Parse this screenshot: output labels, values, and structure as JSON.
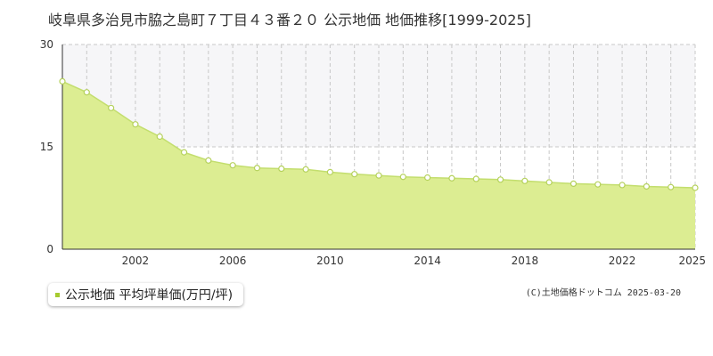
{
  "chart_data": {
    "type": "area",
    "title": "岐阜県多治見市脇之島町７丁目４３番２０ 公示地価 地価推移[1999-2025]",
    "x": [
      1999,
      2000,
      2001,
      2002,
      2003,
      2004,
      2005,
      2006,
      2007,
      2008,
      2009,
      2010,
      2011,
      2012,
      2013,
      2014,
      2015,
      2016,
      2017,
      2018,
      2019,
      2020,
      2021,
      2022,
      2023,
      2024,
      2025
    ],
    "series": [
      {
        "name": "公示地価 平均坪単価(万円/坪)",
        "values": [
          24.6,
          23.0,
          20.7,
          18.3,
          16.5,
          14.2,
          13.0,
          12.3,
          11.9,
          11.8,
          11.7,
          11.3,
          11.0,
          10.8,
          10.6,
          10.5,
          10.4,
          10.3,
          10.2,
          10.0,
          9.8,
          9.6,
          9.5,
          9.4,
          9.2,
          9.1,
          9.0
        ]
      }
    ],
    "xticks": [
      2002,
      2006,
      2010,
      2014,
      2018,
      2022,
      2025
    ],
    "yticks": [
      0,
      15,
      30
    ],
    "xlim": [
      1999,
      2025
    ],
    "ylim": [
      0,
      30
    ],
    "grid": true,
    "legend_placement": "bottom-left"
  },
  "credit": "(C)土地価格ドットコム 2025-03-20",
  "colors": {
    "area_fill": "#dced92",
    "line": "#c3de6e",
    "marker_fill": "#ffffff",
    "marker_stroke": "#b5d15c",
    "legend_marker": "#a6cb2f",
    "grid": "#c8c8c8",
    "axis": "#333333",
    "band": "#f6f6f8"
  }
}
